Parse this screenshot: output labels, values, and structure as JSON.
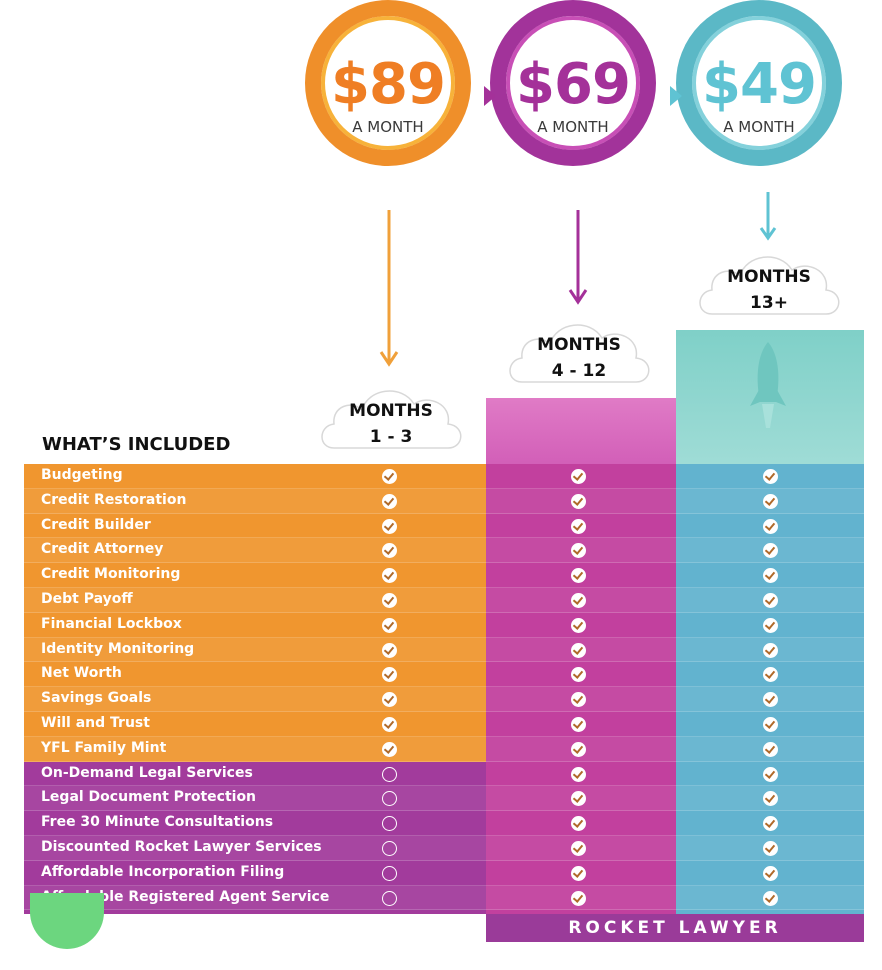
{
  "prices": [
    {
      "amount": "$89",
      "period": "A MONTH",
      "color": "#ef7e24"
    },
    {
      "amount": "$69",
      "period": "A MONTH",
      "color": "#a43199"
    },
    {
      "amount": "$49",
      "period": "A MONTH",
      "color": "#5fc3d3"
    }
  ],
  "phases": [
    {
      "line1": "MONTHS",
      "line2": "1 - 3"
    },
    {
      "line1": "MONTHS",
      "line2": "4 - 12"
    },
    {
      "line1": "MONTHS",
      "line2": "13+"
    }
  ],
  "heading": "WHAT’S INCLUDED",
  "features": [
    {
      "label": "Budgeting",
      "tiers": [
        true,
        true,
        true
      ]
    },
    {
      "label": "Credit Restoration",
      "tiers": [
        true,
        true,
        true
      ]
    },
    {
      "label": "Credit Builder",
      "tiers": [
        true,
        true,
        true
      ]
    },
    {
      "label": "Credit Attorney",
      "tiers": [
        true,
        true,
        true
      ]
    },
    {
      "label": "Credit Monitoring",
      "tiers": [
        true,
        true,
        true
      ]
    },
    {
      "label": "Debt Payoff",
      "tiers": [
        true,
        true,
        true
      ]
    },
    {
      "label": "Financial Lockbox",
      "tiers": [
        true,
        true,
        true
      ]
    },
    {
      "label": "Identity Monitoring",
      "tiers": [
        true,
        true,
        true
      ]
    },
    {
      "label": "Net Worth",
      "tiers": [
        true,
        true,
        true
      ]
    },
    {
      "label": "Savings Goals",
      "tiers": [
        true,
        true,
        true
      ]
    },
    {
      "label": "Will and Trust",
      "tiers": [
        true,
        true,
        true
      ]
    },
    {
      "label": "YFL Family Mint",
      "tiers": [
        true,
        true,
        true
      ]
    },
    {
      "label": "On-Demand Legal Services",
      "tiers": [
        false,
        true,
        true
      ]
    },
    {
      "label": "Legal Document Protection",
      "tiers": [
        false,
        true,
        true
      ]
    },
    {
      "label": "Free 30 Minute Consultations",
      "tiers": [
        false,
        true,
        true
      ]
    },
    {
      "label": "Discounted Rocket Lawyer Services",
      "tiers": [
        false,
        true,
        true
      ]
    },
    {
      "label": "Affordable Incorporation Filing",
      "tiers": [
        false,
        true,
        true
      ]
    },
    {
      "label": "Affordable Registered Agent Service",
      "tiers": [
        false,
        true,
        true
      ]
    }
  ],
  "footer": "ROCKET LAWYER",
  "icons": {
    "check": "check-circle-icon",
    "empty": "empty-circle-icon",
    "rocket": "rocket-icon"
  }
}
